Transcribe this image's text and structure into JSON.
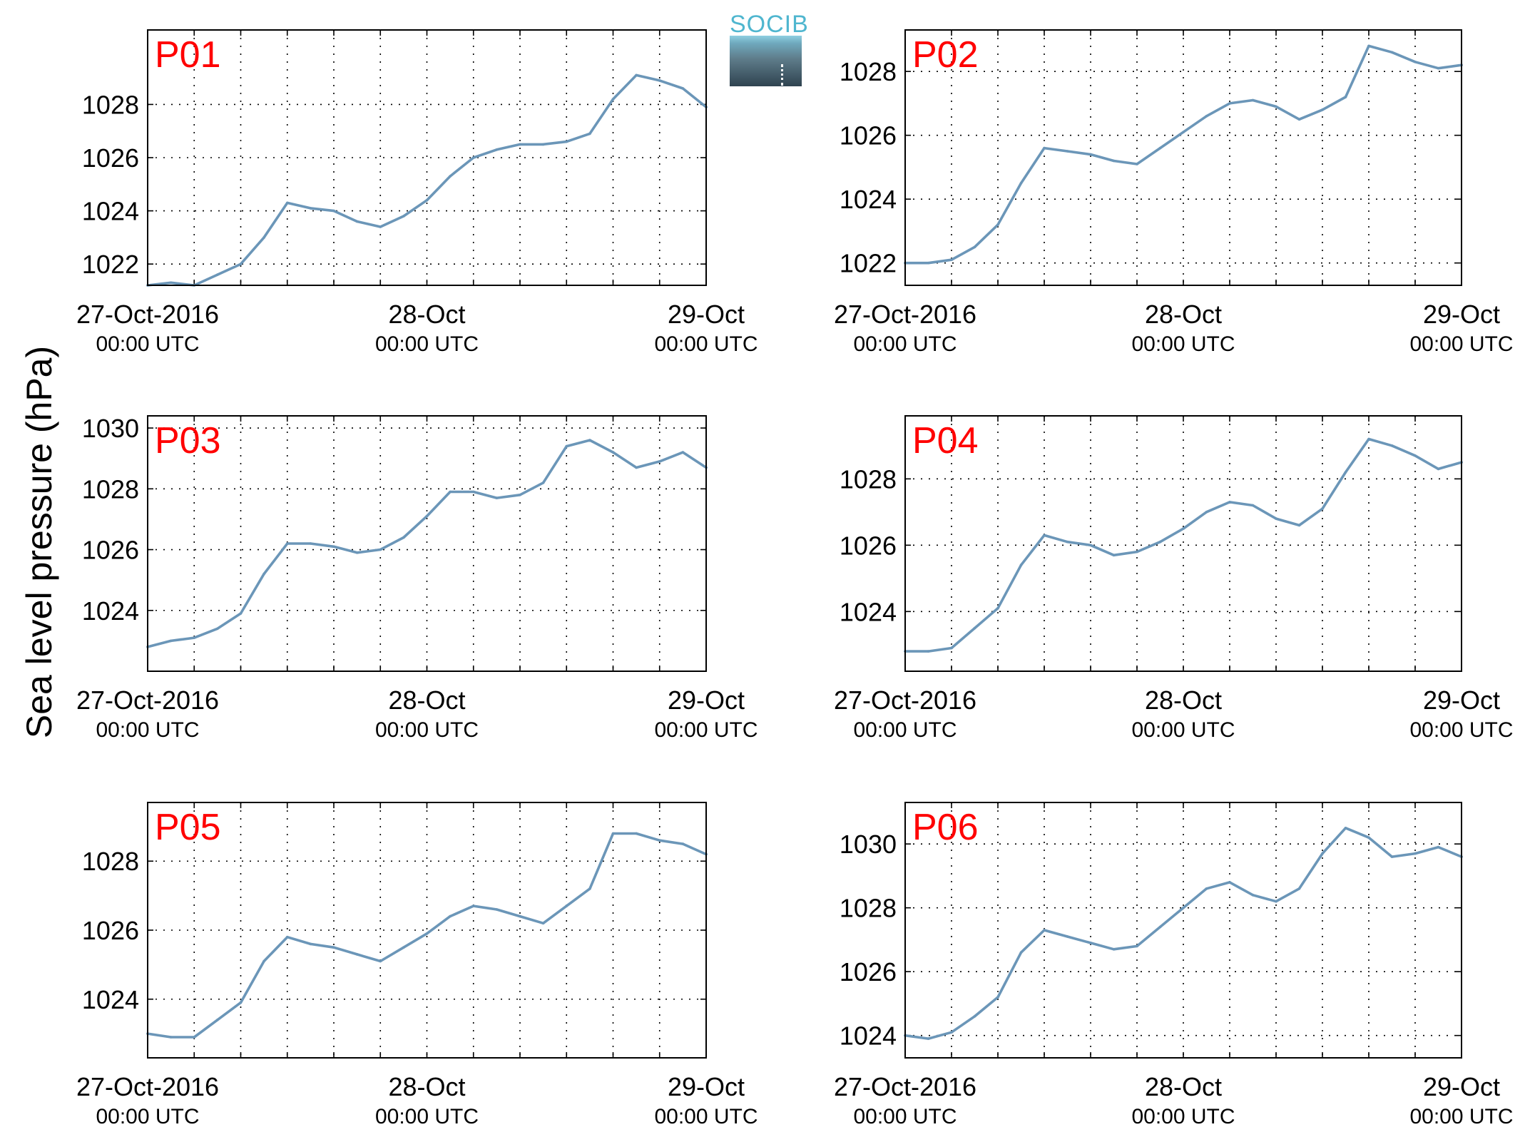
{
  "figure": {
    "ylabel": "Sea level pressure (hPa)",
    "logo_text": "SOCIB",
    "colors": {
      "series": "#6b96b8",
      "panel_label": "#ff0000",
      "logo_text": "#4fb6cf",
      "axes": "#000000"
    }
  },
  "chart_data": [
    {
      "type": "line",
      "title": "P01",
      "x_ticks": [
        "27-Oct-2016 00:00 UTC",
        "28-Oct 00:00 UTC",
        "29-Oct 00:00 UTC"
      ],
      "xlim": [
        "2016-10-27T00:00",
        "2016-10-29T00:00"
      ],
      "ylim": [
        1021.2,
        1030.8
      ],
      "yticks": [
        1022,
        1024,
        1026,
        1028
      ],
      "grid": true,
      "x": [
        "2016-10-27T00:00",
        "2016-10-27T02:00",
        "2016-10-27T04:00",
        "2016-10-27T06:00",
        "2016-10-27T08:00",
        "2016-10-27T10:00",
        "2016-10-27T12:00",
        "2016-10-27T14:00",
        "2016-10-27T16:00",
        "2016-10-27T18:00",
        "2016-10-27T20:00",
        "2016-10-27T22:00",
        "2016-10-28T00:00",
        "2016-10-28T02:00",
        "2016-10-28T04:00",
        "2016-10-28T06:00",
        "2016-10-28T08:00",
        "2016-10-28T10:00",
        "2016-10-28T12:00",
        "2016-10-28T14:00",
        "2016-10-28T16:00",
        "2016-10-28T18:00",
        "2016-10-28T20:00",
        "2016-10-28T22:00",
        "2016-10-29T00:00"
      ],
      "y": [
        1021.2,
        1021.3,
        1021.2,
        1021.6,
        1022.0,
        1023.0,
        1024.3,
        1024.1,
        1024.0,
        1023.6,
        1023.4,
        1023.8,
        1024.4,
        1025.3,
        1026.0,
        1026.3,
        1026.5,
        1026.5,
        1026.6,
        1026.9,
        1028.2,
        1029.1,
        1028.9,
        1028.6,
        1027.9
      ]
    },
    {
      "type": "line",
      "title": "P02",
      "x_ticks": [
        "27-Oct-2016 00:00 UTC",
        "28-Oct 00:00 UTC",
        "29-Oct 00:00 UTC"
      ],
      "xlim": [
        "2016-10-27T00:00",
        "2016-10-29T00:00"
      ],
      "ylim": [
        1021.3,
        1029.3
      ],
      "yticks": [
        1022,
        1024,
        1026,
        1028
      ],
      "grid": true,
      "x": [
        "2016-10-27T00:00",
        "2016-10-27T02:00",
        "2016-10-27T04:00",
        "2016-10-27T06:00",
        "2016-10-27T08:00",
        "2016-10-27T10:00",
        "2016-10-27T12:00",
        "2016-10-27T14:00",
        "2016-10-27T16:00",
        "2016-10-27T18:00",
        "2016-10-27T20:00",
        "2016-10-27T22:00",
        "2016-10-28T00:00",
        "2016-10-28T02:00",
        "2016-10-28T04:00",
        "2016-10-28T06:00",
        "2016-10-28T08:00",
        "2016-10-28T10:00",
        "2016-10-28T12:00",
        "2016-10-28T14:00",
        "2016-10-28T16:00",
        "2016-10-28T18:00",
        "2016-10-28T20:00",
        "2016-10-28T22:00",
        "2016-10-29T00:00"
      ],
      "y": [
        1022.0,
        1022.0,
        1022.1,
        1022.5,
        1023.2,
        1024.5,
        1025.6,
        1025.5,
        1025.4,
        1025.2,
        1025.1,
        1025.6,
        1026.1,
        1026.6,
        1027.0,
        1027.1,
        1026.9,
        1026.5,
        1026.8,
        1027.2,
        1028.8,
        1028.6,
        1028.3,
        1028.1,
        1028.2
      ]
    },
    {
      "type": "line",
      "title": "P03",
      "x_ticks": [
        "27-Oct-2016 00:00 UTC",
        "28-Oct 00:00 UTC",
        "29-Oct 00:00 UTC"
      ],
      "xlim": [
        "2016-10-27T00:00",
        "2016-10-29T00:00"
      ],
      "ylim": [
        1022.0,
        1030.4
      ],
      "yticks": [
        1024,
        1026,
        1028,
        1030
      ],
      "grid": true,
      "x": [
        "2016-10-27T00:00",
        "2016-10-27T02:00",
        "2016-10-27T04:00",
        "2016-10-27T06:00",
        "2016-10-27T08:00",
        "2016-10-27T10:00",
        "2016-10-27T12:00",
        "2016-10-27T14:00",
        "2016-10-27T16:00",
        "2016-10-27T18:00",
        "2016-10-27T20:00",
        "2016-10-27T22:00",
        "2016-10-28T00:00",
        "2016-10-28T02:00",
        "2016-10-28T04:00",
        "2016-10-28T06:00",
        "2016-10-28T08:00",
        "2016-10-28T10:00",
        "2016-10-28T12:00",
        "2016-10-28T14:00",
        "2016-10-28T16:00",
        "2016-10-28T18:00",
        "2016-10-28T20:00",
        "2016-10-28T22:00",
        "2016-10-29T00:00"
      ],
      "y": [
        1022.8,
        1023.0,
        1023.1,
        1023.4,
        1023.9,
        1025.2,
        1026.2,
        1026.2,
        1026.1,
        1025.9,
        1026.0,
        1026.4,
        1027.1,
        1027.9,
        1027.9,
        1027.7,
        1027.8,
        1028.2,
        1029.4,
        1029.6,
        1029.2,
        1028.7,
        1028.9,
        1029.2,
        1028.7
      ]
    },
    {
      "type": "line",
      "title": "P04",
      "x_ticks": [
        "27-Oct-2016 00:00 UTC",
        "28-Oct 00:00 UTC",
        "29-Oct 00:00 UTC"
      ],
      "xlim": [
        "2016-10-27T00:00",
        "2016-10-29T00:00"
      ],
      "ylim": [
        1022.2,
        1029.9
      ],
      "yticks": [
        1024,
        1026,
        1028
      ],
      "grid": true,
      "x": [
        "2016-10-27T00:00",
        "2016-10-27T02:00",
        "2016-10-27T04:00",
        "2016-10-27T06:00",
        "2016-10-27T08:00",
        "2016-10-27T10:00",
        "2016-10-27T12:00",
        "2016-10-27T14:00",
        "2016-10-27T16:00",
        "2016-10-27T18:00",
        "2016-10-27T20:00",
        "2016-10-27T22:00",
        "2016-10-28T00:00",
        "2016-10-28T02:00",
        "2016-10-28T04:00",
        "2016-10-28T06:00",
        "2016-10-28T08:00",
        "2016-10-28T10:00",
        "2016-10-28T12:00",
        "2016-10-28T14:00",
        "2016-10-28T16:00",
        "2016-10-28T18:00",
        "2016-10-28T20:00",
        "2016-10-28T22:00",
        "2016-10-29T00:00"
      ],
      "y": [
        1022.8,
        1022.8,
        1022.9,
        1023.5,
        1024.1,
        1025.4,
        1026.3,
        1026.1,
        1026.0,
        1025.7,
        1025.8,
        1026.1,
        1026.5,
        1027.0,
        1027.3,
        1027.2,
        1026.8,
        1026.6,
        1027.1,
        1028.2,
        1029.2,
        1029.0,
        1028.7,
        1028.3,
        1028.5
      ]
    },
    {
      "type": "line",
      "title": "P05",
      "x_ticks": [
        "27-Oct-2016 00:00 UTC",
        "28-Oct 00:00 UTC",
        "29-Oct 00:00 UTC"
      ],
      "xlim": [
        "2016-10-27T00:00",
        "2016-10-29T00:00"
      ],
      "ylim": [
        1022.3,
        1029.7
      ],
      "yticks": [
        1024,
        1026,
        1028
      ],
      "grid": true,
      "x": [
        "2016-10-27T00:00",
        "2016-10-27T02:00",
        "2016-10-27T04:00",
        "2016-10-27T06:00",
        "2016-10-27T08:00",
        "2016-10-27T10:00",
        "2016-10-27T12:00",
        "2016-10-27T14:00",
        "2016-10-27T16:00",
        "2016-10-27T18:00",
        "2016-10-27T20:00",
        "2016-10-27T22:00",
        "2016-10-28T00:00",
        "2016-10-28T02:00",
        "2016-10-28T04:00",
        "2016-10-28T06:00",
        "2016-10-28T08:00",
        "2016-10-28T10:00",
        "2016-10-28T12:00",
        "2016-10-28T14:00",
        "2016-10-28T16:00",
        "2016-10-28T18:00",
        "2016-10-28T20:00",
        "2016-10-28T22:00",
        "2016-10-29T00:00"
      ],
      "y": [
        1023.0,
        1022.9,
        1022.9,
        1023.4,
        1023.9,
        1025.1,
        1025.8,
        1025.6,
        1025.5,
        1025.3,
        1025.1,
        1025.5,
        1025.9,
        1026.4,
        1026.7,
        1026.6,
        1026.4,
        1026.2,
        1026.7,
        1027.2,
        1028.8,
        1028.8,
        1028.6,
        1028.5,
        1028.2
      ]
    },
    {
      "type": "line",
      "title": "P06",
      "x_ticks": [
        "27-Oct-2016 00:00 UTC",
        "28-Oct 00:00 UTC",
        "29-Oct 00:00 UTC"
      ],
      "xlim": [
        "2016-10-27T00:00",
        "2016-10-29T00:00"
      ],
      "ylim": [
        1023.3,
        1031.3
      ],
      "yticks": [
        1024,
        1026,
        1028,
        1030
      ],
      "grid": true,
      "x": [
        "2016-10-27T00:00",
        "2016-10-27T02:00",
        "2016-10-27T04:00",
        "2016-10-27T06:00",
        "2016-10-27T08:00",
        "2016-10-27T10:00",
        "2016-10-27T12:00",
        "2016-10-27T14:00",
        "2016-10-27T16:00",
        "2016-10-27T18:00",
        "2016-10-27T20:00",
        "2016-10-27T22:00",
        "2016-10-28T00:00",
        "2016-10-28T02:00",
        "2016-10-28T04:00",
        "2016-10-28T06:00",
        "2016-10-28T08:00",
        "2016-10-28T10:00",
        "2016-10-28T12:00",
        "2016-10-28T14:00",
        "2016-10-28T16:00",
        "2016-10-28T18:00",
        "2016-10-28T20:00",
        "2016-10-28T22:00",
        "2016-10-29T00:00"
      ],
      "y": [
        1024.0,
        1023.9,
        1024.1,
        1024.6,
        1025.2,
        1026.6,
        1027.3,
        1027.1,
        1026.9,
        1026.7,
        1026.8,
        1027.4,
        1028.0,
        1028.6,
        1028.8,
        1028.4,
        1028.2,
        1028.6,
        1029.7,
        1030.5,
        1030.2,
        1029.6,
        1029.7,
        1029.9,
        1029.6
      ]
    }
  ]
}
